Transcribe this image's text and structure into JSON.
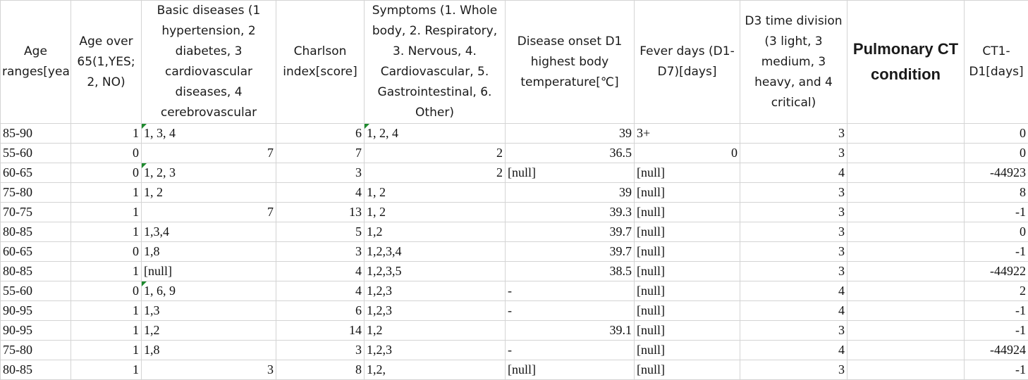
{
  "sheet": {
    "headers": [
      {
        "label": "Age ranges[years]"
      },
      {
        "label": "Age over 65(1,YES; 2, NO)"
      },
      {
        "label": "Basic diseases (1 hypertension, 2 diabetes, 3 cardiovascular diseases, 4 cerebrovascular"
      },
      {
        "label": "Charlson index[score]"
      },
      {
        "label": "Symptoms (1. Whole body, 2. Respiratory, 3. Nervous, 4. Cardiovascular, 5. Gastrointestinal, 6. Other)"
      },
      {
        "label": "Disease onset D1 highest body temperature[℃]"
      },
      {
        "label": "Fever days (D1-D7)[days]"
      },
      {
        "label": "D3 time division (3 light, 3 medium, 3 heavy, and 4 critical)"
      },
      {
        "label": "Pulmonary CT condition"
      },
      {
        "label": "CT1-D1[days]"
      }
    ],
    "rows": [
      [
        "85-90",
        "1",
        "1, 3, 4",
        "6",
        "1, 2, 4",
        "39",
        "3+",
        "3",
        "",
        "0"
      ],
      [
        "55-60",
        "0",
        "7",
        "7",
        "2",
        "36.5",
        "0",
        "3",
        "",
        "0"
      ],
      [
        "60-65",
        "0",
        "1, 2, 3",
        "3",
        "2",
        "[null]",
        "[null]",
        "4",
        "",
        "-44923"
      ],
      [
        "75-80",
        "1",
        "1, 2",
        "4",
        "1, 2",
        "39",
        "[null]",
        "3",
        "",
        "8"
      ],
      [
        "70-75",
        "1",
        "7",
        "13",
        "1, 2",
        "39.3",
        "[null]",
        "3",
        "",
        "-1"
      ],
      [
        "80-85",
        "1",
        "1,3,4",
        "5",
        "1,2",
        "39.7",
        "[null]",
        "3",
        "",
        "0"
      ],
      [
        "60-65",
        "0",
        "1,8",
        "3",
        "1,2,3,4",
        "39.7",
        "[null]",
        "3",
        "",
        "-1"
      ],
      [
        "80-85",
        "1",
        "[null]",
        "4",
        "1,2,3,5",
        "38.5",
        "[null]",
        "3",
        "",
        "-44922"
      ],
      [
        "55-60",
        "0",
        "1, 6, 9",
        "4",
        "1,2,3",
        "-",
        "[null]",
        "4",
        "",
        "2"
      ],
      [
        "90-95",
        "1",
        "1,3",
        "6",
        "1,2,3",
        "-",
        "[null]",
        "4",
        "",
        "-1"
      ],
      [
        "90-95",
        "1",
        "1,2",
        "14",
        "1,2",
        "39.1",
        "[null]",
        "3",
        "",
        "-1"
      ],
      [
        "75-80",
        "1",
        "1,8",
        "3",
        "1,2,3",
        "-",
        "[null]",
        "4",
        "",
        "-44924"
      ],
      [
        "80-85",
        "1",
        "3",
        "8",
        "1,2,",
        "[null]",
        "[null]",
        "3",
        "",
        "-1"
      ]
    ]
  }
}
